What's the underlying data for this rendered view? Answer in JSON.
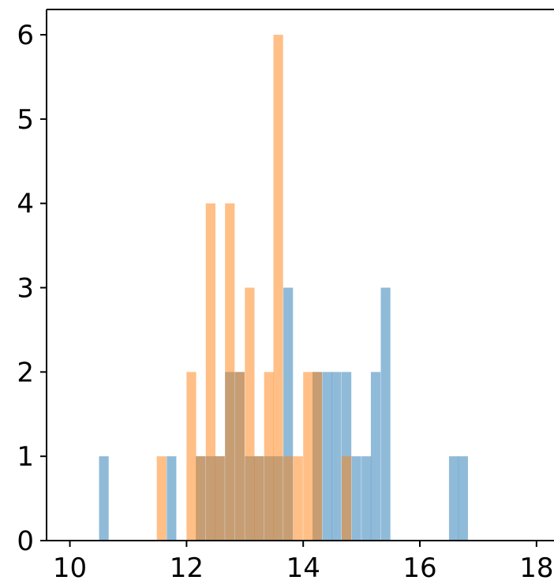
{
  "chart_data": {
    "type": "bar",
    "title": "",
    "xlabel": "",
    "ylabel": "",
    "xlim": [
      9.6,
      18.3
    ],
    "ylim": [
      0,
      6.3
    ],
    "bin_width": 0.165,
    "grid": false,
    "legend": false,
    "xticks": [
      "10",
      "12",
      "14",
      "16",
      "18"
    ],
    "yticks": [
      "0",
      "1",
      "2",
      "3",
      "4",
      "5",
      "6"
    ],
    "series": [
      {
        "color": "#1f77b4",
        "opacity": 0.5,
        "bins": [
          {
            "x": 10.5,
            "count": 1
          },
          {
            "x": 11.66,
            "count": 1
          },
          {
            "x": 12.16,
            "count": 1
          },
          {
            "x": 12.33,
            "count": 1
          },
          {
            "x": 12.49,
            "count": 1
          },
          {
            "x": 12.66,
            "count": 2
          },
          {
            "x": 12.83,
            "count": 2
          },
          {
            "x": 13.0,
            "count": 1
          },
          {
            "x": 13.16,
            "count": 1
          },
          {
            "x": 13.33,
            "count": 1
          },
          {
            "x": 13.49,
            "count": 1
          },
          {
            "x": 13.66,
            "count": 3
          },
          {
            "x": 14.16,
            "count": 2
          },
          {
            "x": 14.33,
            "count": 2
          },
          {
            "x": 14.49,
            "count": 2
          },
          {
            "x": 14.66,
            "count": 2
          },
          {
            "x": 14.83,
            "count": 1
          },
          {
            "x": 15.0,
            "count": 1
          },
          {
            "x": 15.16,
            "count": 2
          },
          {
            "x": 15.33,
            "count": 3
          },
          {
            "x": 16.5,
            "count": 1
          },
          {
            "x": 16.66,
            "count": 1
          }
        ]
      },
      {
        "color": "#ff7f0e",
        "opacity": 0.5,
        "bins": [
          {
            "x": 11.49,
            "count": 1
          },
          {
            "x": 12.0,
            "count": 2
          },
          {
            "x": 12.16,
            "count": 1
          },
          {
            "x": 12.33,
            "count": 4
          },
          {
            "x": 12.49,
            "count": 1
          },
          {
            "x": 12.66,
            "count": 4
          },
          {
            "x": 12.83,
            "count": 2
          },
          {
            "x": 13.0,
            "count": 3
          },
          {
            "x": 13.16,
            "count": 1
          },
          {
            "x": 13.33,
            "count": 2
          },
          {
            "x": 13.49,
            "count": 6
          },
          {
            "x": 13.66,
            "count": 1
          },
          {
            "x": 13.83,
            "count": 1
          },
          {
            "x": 14.0,
            "count": 2
          },
          {
            "x": 14.16,
            "count": 2
          },
          {
            "x": 14.66,
            "count": 1
          }
        ]
      }
    ]
  }
}
